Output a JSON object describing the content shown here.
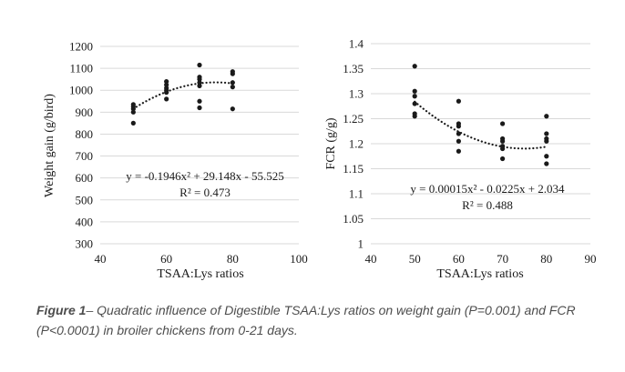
{
  "chart_data": [
    {
      "type": "scatter",
      "title": "",
      "xlabel": "TSAA:Lys ratios",
      "ylabel": "Weight gain (g/bird)",
      "xlim": [
        40,
        100
      ],
      "ylim": [
        300,
        1200
      ],
      "x_ticks": [
        "40",
        "60",
        "80",
        "100"
      ],
      "y_ticks": [
        "300",
        "400",
        "500",
        "600",
        "700",
        "800",
        "900",
        "1000",
        "1100",
        "1200"
      ],
      "grid": "horizontal",
      "points": [
        [
          50,
          850
        ],
        [
          50,
          900
        ],
        [
          50,
          915
        ],
        [
          50,
          925
        ],
        [
          50,
          935
        ],
        [
          60,
          960
        ],
        [
          60,
          990
        ],
        [
          60,
          1000
        ],
        [
          60,
          1010
        ],
        [
          60,
          1025
        ],
        [
          60,
          1040
        ],
        [
          70,
          920
        ],
        [
          70,
          950
        ],
        [
          70,
          1020
        ],
        [
          70,
          1035
        ],
        [
          70,
          1050
        ],
        [
          70,
          1060
        ],
        [
          70,
          1115
        ],
        [
          80,
          915
        ],
        [
          80,
          1015
        ],
        [
          80,
          1035
        ],
        [
          80,
          1075
        ],
        [
          80,
          1085
        ]
      ],
      "trendline": {
        "type": "quadratic",
        "style": "dotted",
        "coefficients": [
          -0.1946,
          29.148,
          -55.525
        ]
      },
      "equation": "y = -0.1946x² + 29.148x - 55.525",
      "r2_label": "R² = 0.473"
    },
    {
      "type": "scatter",
      "title": "",
      "xlabel": "TSAA:Lys ratios",
      "ylabel": "FCR (g/g)",
      "xlim": [
        40,
        90
      ],
      "ylim": [
        1,
        1.4
      ],
      "x_ticks": [
        "40",
        "50",
        "60",
        "70",
        "80",
        "90"
      ],
      "y_ticks": [
        "1",
        "1.05",
        "1.1",
        "1.15",
        "1.2",
        "1.25",
        "1.3",
        "1.35",
        "1.4"
      ],
      "grid": "horizontal",
      "points": [
        [
          50,
          1.255
        ],
        [
          50,
          1.26
        ],
        [
          50,
          1.28
        ],
        [
          50,
          1.295
        ],
        [
          50,
          1.305
        ],
        [
          50,
          1.355
        ],
        [
          60,
          1.185
        ],
        [
          60,
          1.205
        ],
        [
          60,
          1.22
        ],
        [
          60,
          1.235
        ],
        [
          60,
          1.24
        ],
        [
          60,
          1.285
        ],
        [
          70,
          1.17
        ],
        [
          70,
          1.19
        ],
        [
          70,
          1.195
        ],
        [
          70,
          1.205
        ],
        [
          70,
          1.21
        ],
        [
          70,
          1.24
        ],
        [
          80,
          1.16
        ],
        [
          80,
          1.175
        ],
        [
          80,
          1.205
        ],
        [
          80,
          1.21
        ],
        [
          80,
          1.22
        ],
        [
          80,
          1.255
        ]
      ],
      "trendline": {
        "type": "quadratic",
        "style": "dotted",
        "coefficients": [
          0.00015,
          -0.0225,
          2.034
        ]
      },
      "equation": "y = 0.00015x² - 0.0225x + 2.034",
      "r2_label": "R² = 0.488"
    }
  ],
  "caption": {
    "label": "Figure 1",
    "text": "– Quadratic influence of Digestible TSAA:Lys ratios on weight gain (P=0.001) and FCR (P<0.0001) in broiler chickens from 0-21 days."
  },
  "colors": {
    "points": "#1a1a1a",
    "grid": "#d9d9d9",
    "caption": "#4d4d4d"
  }
}
